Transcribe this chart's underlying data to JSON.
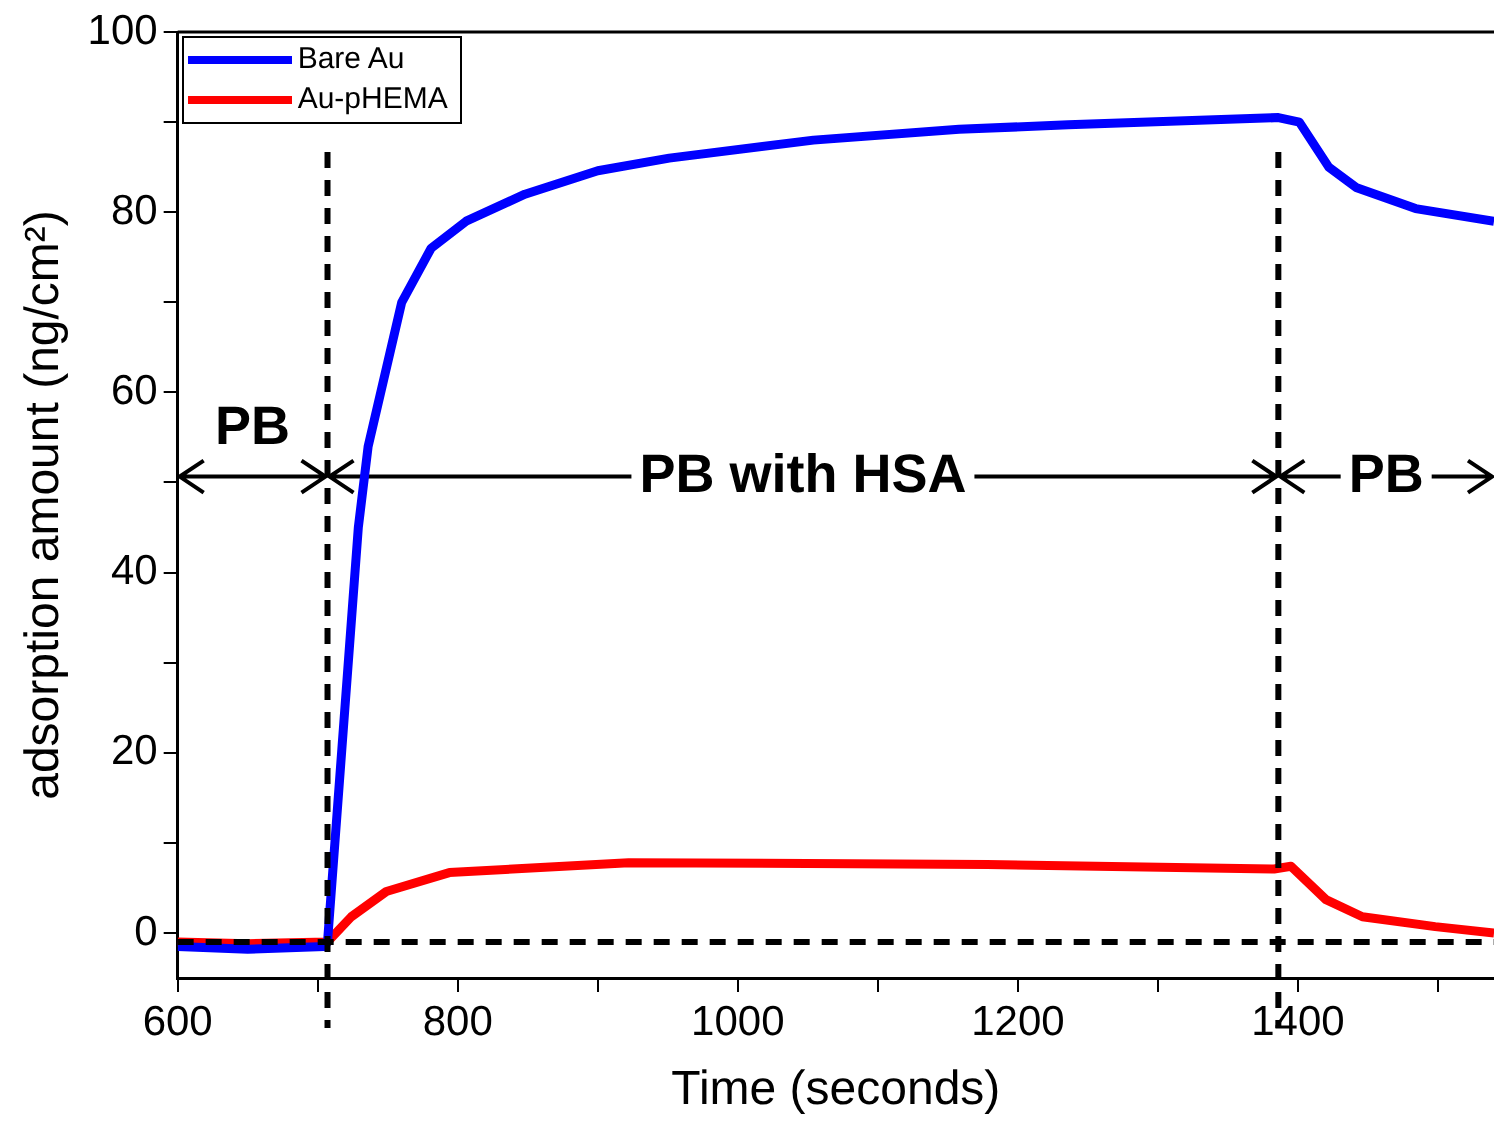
{
  "chart_data": {
    "type": "line",
    "xlabel": "Time (seconds)",
    "ylabel": "adsorption amount (ng/cm²)",
    "xlim": [
      600,
      1540
    ],
    "ylim": [
      -5,
      100
    ],
    "xticks": [
      600,
      {
        "value": 700,
        "label": null
      },
      800,
      {
        "value": 900,
        "label": null
      },
      1000,
      {
        "value": 1100,
        "label": null
      },
      1200,
      {
        "value": 1300,
        "label": null
      },
      1400,
      {
        "value": 1500,
        "label": null
      }
    ],
    "yticks": [
      0,
      {
        "value": 10,
        "label": null
      },
      20,
      {
        "value": 30,
        "label": null
      },
      40,
      {
        "value": 50,
        "label": null
      },
      60,
      {
        "value": 70,
        "label": null
      },
      80,
      {
        "value": 90,
        "label": null
      },
      100
    ],
    "grid": false,
    "legend": "top left",
    "marker": "none",
    "line_style": "solid",
    "series": [
      {
        "name": "Bare Au",
        "color": "#0000ff",
        "x": [
          600,
          650,
          705,
          707,
          729,
          736,
          760,
          781,
          806,
          848,
          900,
          951,
          1054,
          1158,
          1236,
          1386,
          1401,
          1422,
          1442,
          1484,
          1540
        ],
        "values": [
          -1.5,
          -1.8,
          -1.5,
          -1,
          45,
          54,
          70,
          76,
          79,
          82,
          84.6,
          86,
          88,
          89.2,
          89.7,
          90.5,
          90,
          85,
          82.7,
          80.4,
          79
        ]
      },
      {
        "name": "Au-pHEMA",
        "color": "#ff0000",
        "x": [
          600,
          650,
          707,
          724,
          749,
          794,
          922,
          1178,
          1383,
          1395,
          1420,
          1446,
          1498,
          1540
        ],
        "values": [
          -1,
          -1.2,
          -1,
          1.8,
          4.6,
          6.7,
          7.8,
          7.6,
          7.1,
          7.4,
          3.7,
          1.8,
          0.7,
          0
        ]
      }
    ],
    "ref_lines": [
      {
        "axis": "x",
        "value": 707,
        "line_style": "dashed",
        "color": "#000000"
      },
      {
        "axis": "x",
        "value": 1386,
        "line_style": "dashed",
        "color": "#000000"
      },
      {
        "axis": "y",
        "value": -1,
        "line_style": "dashed",
        "color": "#000000"
      }
    ],
    "annotations": [
      "PB",
      "PB with HSA",
      "PB"
    ]
  }
}
